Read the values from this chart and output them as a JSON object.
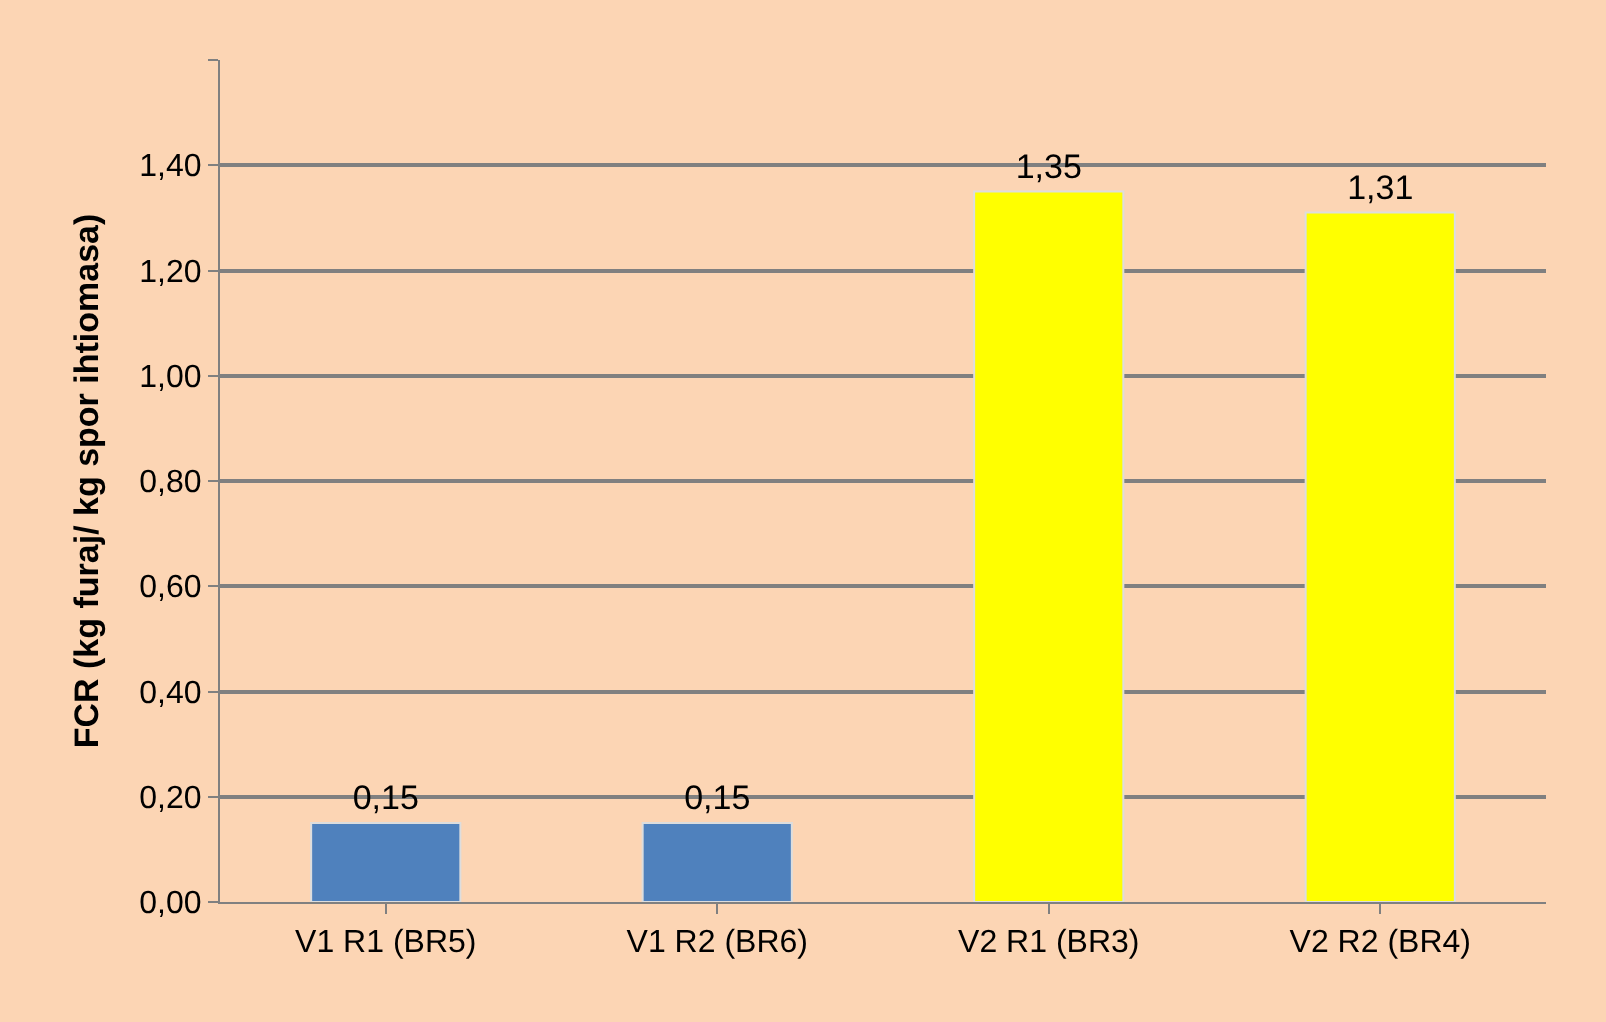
{
  "chart_data": {
    "type": "bar",
    "ylabel": "FCR (kg furaj/ kg spor ihtiomasa)",
    "categories": [
      "V1 R1 (BR5)",
      "V1 R2 (BR6)",
      "V2 R1 (BR3)",
      "V2 R2 (BR4)"
    ],
    "values": [
      0.15,
      0.15,
      1.35,
      1.31
    ],
    "colors": [
      "#4f81bd",
      "#4f81bd",
      "#ffff00",
      "#ffff00"
    ],
    "value_labels": [
      "0,15",
      "0,15",
      "1,35",
      "1,31"
    ],
    "ylim": [
      0,
      1.6
    ],
    "yticks": [
      {
        "value": 0,
        "label": "0,00"
      },
      {
        "value": 0.2,
        "label": "0,20"
      },
      {
        "value": 0.4,
        "label": "0,40"
      },
      {
        "value": 0.6,
        "label": "0,60"
      },
      {
        "value": 0.8,
        "label": "0,80"
      },
      {
        "value": 1.0,
        "label": "1,00"
      },
      {
        "value": 1.2,
        "label": "1,20"
      },
      {
        "value": 1.4,
        "label": "1,40"
      },
      {
        "value": 1.6,
        "label": null
      }
    ],
    "grid": "y"
  }
}
